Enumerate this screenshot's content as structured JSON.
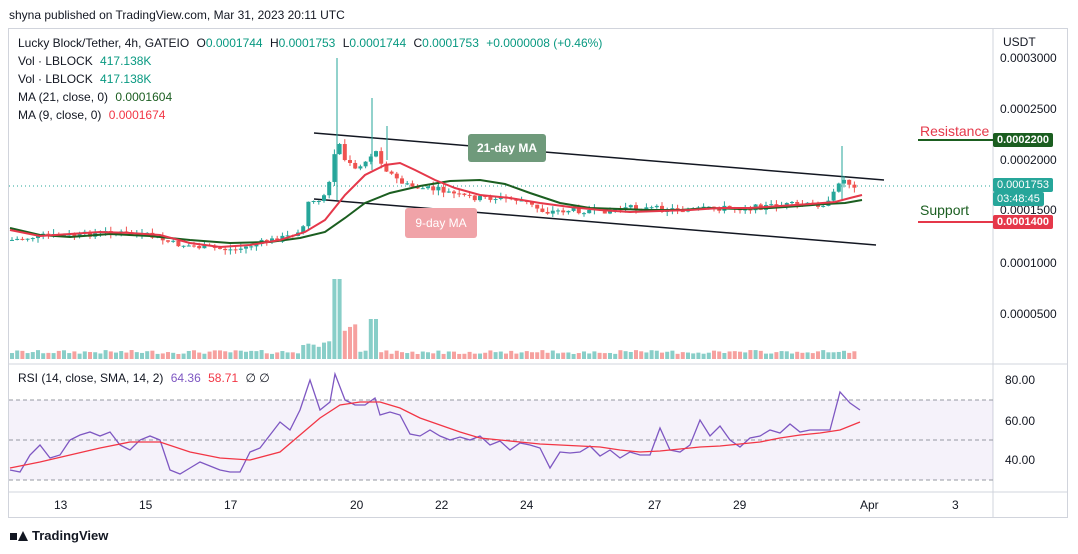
{
  "header": {
    "published_text": "shyna published on TradingView.com, Mar 31, 2023 20:11 UTC"
  },
  "legend": {
    "symbol": "Lucky Block/Tether, 4h, GATEIO",
    "o_label": "O",
    "o_value": "0.0001744",
    "h_label": "H",
    "h_value": "0.0001753",
    "l_label": "L",
    "l_value": "0.0001744",
    "c_label": "C",
    "c_value": "0.0001753",
    "change": "+0.0000008 (+0.46%)",
    "vol1_label": "Vol · LBLOCK",
    "vol1_value": "417.138K",
    "vol2_label": "Vol · LBLOCK",
    "vol2_value": "417.138K",
    "ma21_label": "MA (21, close, 0)",
    "ma21_value": "0.0001604",
    "ma9_label": "MA (9, close, 0)",
    "ma9_value": "0.0001674",
    "rsi_label": "RSI (14, close, SMA, 14, 2)",
    "rsi_value": "64.36",
    "rsi_sma_value": "58.71",
    "rsi_extra": "∅ ∅"
  },
  "price_axis": {
    "currency": "USDT",
    "ticks": [
      "0.0003000",
      "0.0002500",
      "0.0002000",
      "0.0001500",
      "0.0001000",
      "0.0000500"
    ],
    "current_price": "0.0001753",
    "countdown": "03:48:45",
    "resistance_value": "0.0002200",
    "support_value": "0.0001400"
  },
  "rsi_axis": {
    "ticks": [
      "80.00",
      "60.00",
      "40.00"
    ]
  },
  "time_axis": {
    "ticks": [
      "13",
      "15",
      "17",
      "20",
      "22",
      "24",
      "27",
      "29",
      "Apr",
      "3"
    ]
  },
  "annotations": {
    "ma21": "21-day MA",
    "ma9": "9-day MA",
    "resistance": "Resistance",
    "support": "Support"
  },
  "colors": {
    "up": "#26a69a",
    "down": "#ef5350",
    "ma21": "#1b5e20",
    "ma9": "#e5384a",
    "rsi": "#7e57c2",
    "rsi_sma": "#f23645",
    "resistance_badge": "#1b5e20",
    "support_badge": "#e5384a",
    "price_badge": "#26a69a"
  },
  "footer": {
    "brand": "TradingView"
  }
}
